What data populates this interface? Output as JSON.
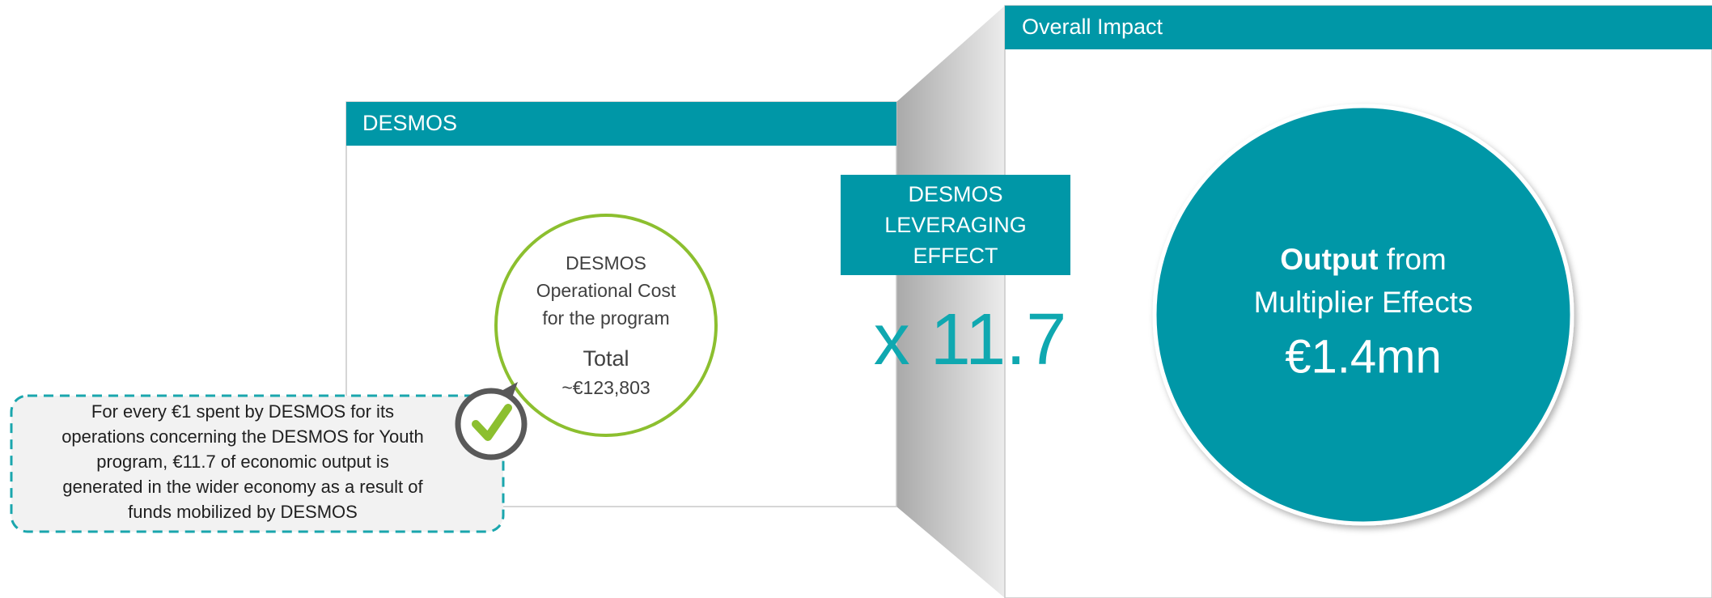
{
  "left_panel": {
    "header": "DESMOS",
    "circle": {
      "lines": [
        "DESMOS",
        "Operational Cost",
        "for the program"
      ],
      "total_label": "Total",
      "total_value": "~€123,803"
    }
  },
  "leverage": {
    "lines": [
      "DESMOS",
      "LEVERAGING",
      "EFFECT"
    ],
    "multiplier": "x 11.7"
  },
  "right_panel": {
    "header": "Overall Impact",
    "circle": {
      "emphasis": "Output",
      "rest": " from",
      "line2": "Multiplier Effects",
      "value": "€1.4mn"
    }
  },
  "callout": {
    "lines": [
      "For every €1 spent by DESMOS for its",
      "operations concerning the DESMOS for Youth",
      "program, €11.7 of economic output is",
      "generated in the wider economy as a result of",
      "funds mobilized by DESMOS"
    ]
  }
}
